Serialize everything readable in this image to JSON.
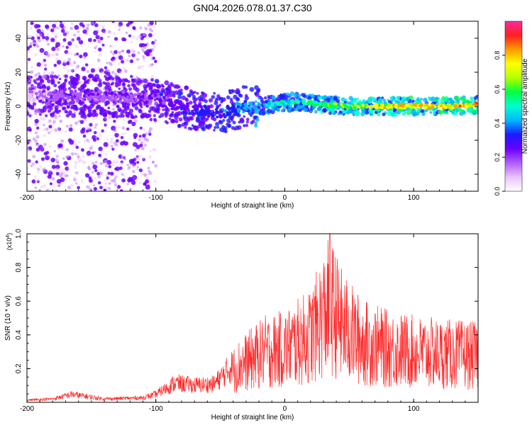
{
  "title": "GN04.2026.078.01.37.C30",
  "colors": {
    "line": "#ff2a2a",
    "axis": "#000000",
    "colormap": [
      "#ffffff",
      "#e9c2ff",
      "#b15cff",
      "#6a00ff",
      "#1b1bff",
      "#00b7ff",
      "#00ffd0",
      "#00ff40",
      "#b4ff00",
      "#ffff00",
      "#ff9c00",
      "#ff2020",
      "#ff2a9a"
    ]
  },
  "chart_data": [
    {
      "type": "heatmap",
      "title": "GN04.2026.078.01.37.C30",
      "xlabel": "Height of straight line (km)",
      "ylabel": "Frequency (Hz)",
      "xlim": [
        -200,
        150
      ],
      "ylim": [
        -50,
        50
      ],
      "x_ticks": [
        -200,
        -100,
        0,
        100
      ],
      "y_ticks": [
        -40,
        -20,
        0,
        20,
        40
      ],
      "colorbar": {
        "label": "Normalized spectral amplitude",
        "range": [
          0,
          1
        ],
        "ticks": [
          0.0,
          0.2,
          0.4,
          0.6,
          0.8
        ]
      },
      "ridge": [
        {
          "x": -200,
          "y": 6,
          "amp": 0.15
        },
        {
          "x": -170,
          "y": 6,
          "amp": 0.25
        },
        {
          "x": -140,
          "y": 6,
          "amp": 0.25
        },
        {
          "x": -110,
          "y": 5,
          "amp": 0.25
        },
        {
          "x": -90,
          "y": 2,
          "amp": 0.3
        },
        {
          "x": -70,
          "y": -2,
          "amp": 0.35
        },
        {
          "x": -50,
          "y": -4,
          "amp": 0.4
        },
        {
          "x": -30,
          "y": 0,
          "amp": 0.45
        },
        {
          "x": -10,
          "y": 1,
          "amp": 0.55
        },
        {
          "x": 10,
          "y": 3,
          "amp": 0.6
        },
        {
          "x": 30,
          "y": 1,
          "amp": 0.65
        },
        {
          "x": 50,
          "y": 0,
          "amp": 0.75
        },
        {
          "x": 70,
          "y": 0,
          "amp": 0.8
        },
        {
          "x": 100,
          "y": 0,
          "amp": 0.85
        },
        {
          "x": 130,
          "y": 0,
          "amp": 0.9
        },
        {
          "x": 150,
          "y": 1,
          "amp": 0.9
        }
      ],
      "scatter_band": {
        "x_from": -200,
        "x_to": -100,
        "y_range": [
          -50,
          50
        ]
      }
    },
    {
      "type": "line",
      "xlabel": "Height of straight line (km)",
      "ylabel": "SNR (10 * v/v)",
      "y_multiplier_label": "(x10",
      "y_multiplier_exp": "4",
      "xlim": [
        -200,
        150
      ],
      "ylim": [
        0,
        1.0
      ],
      "x_ticks": [
        -200,
        -100,
        0,
        100
      ],
      "y_ticks": [
        0.2,
        0.4,
        0.6,
        0.8,
        1.0
      ],
      "envelope": [
        {
          "x": -200,
          "y": 0.02
        },
        {
          "x": -180,
          "y": 0.03
        },
        {
          "x": -165,
          "y": 0.07
        },
        {
          "x": -140,
          "y": 0.03
        },
        {
          "x": -110,
          "y": 0.04
        },
        {
          "x": -100,
          "y": 0.07
        },
        {
          "x": -85,
          "y": 0.17
        },
        {
          "x": -70,
          "y": 0.15
        },
        {
          "x": -55,
          "y": 0.16
        },
        {
          "x": -35,
          "y": 0.38
        },
        {
          "x": -25,
          "y": 0.45
        },
        {
          "x": -15,
          "y": 0.52
        },
        {
          "x": 0,
          "y": 0.55
        },
        {
          "x": 20,
          "y": 0.68
        },
        {
          "x": 35,
          "y": 1.0
        },
        {
          "x": 45,
          "y": 0.78
        },
        {
          "x": 60,
          "y": 0.62
        },
        {
          "x": 80,
          "y": 0.55
        },
        {
          "x": 100,
          "y": 0.52
        },
        {
          "x": 120,
          "y": 0.5
        },
        {
          "x": 150,
          "y": 0.48
        }
      ]
    }
  ]
}
